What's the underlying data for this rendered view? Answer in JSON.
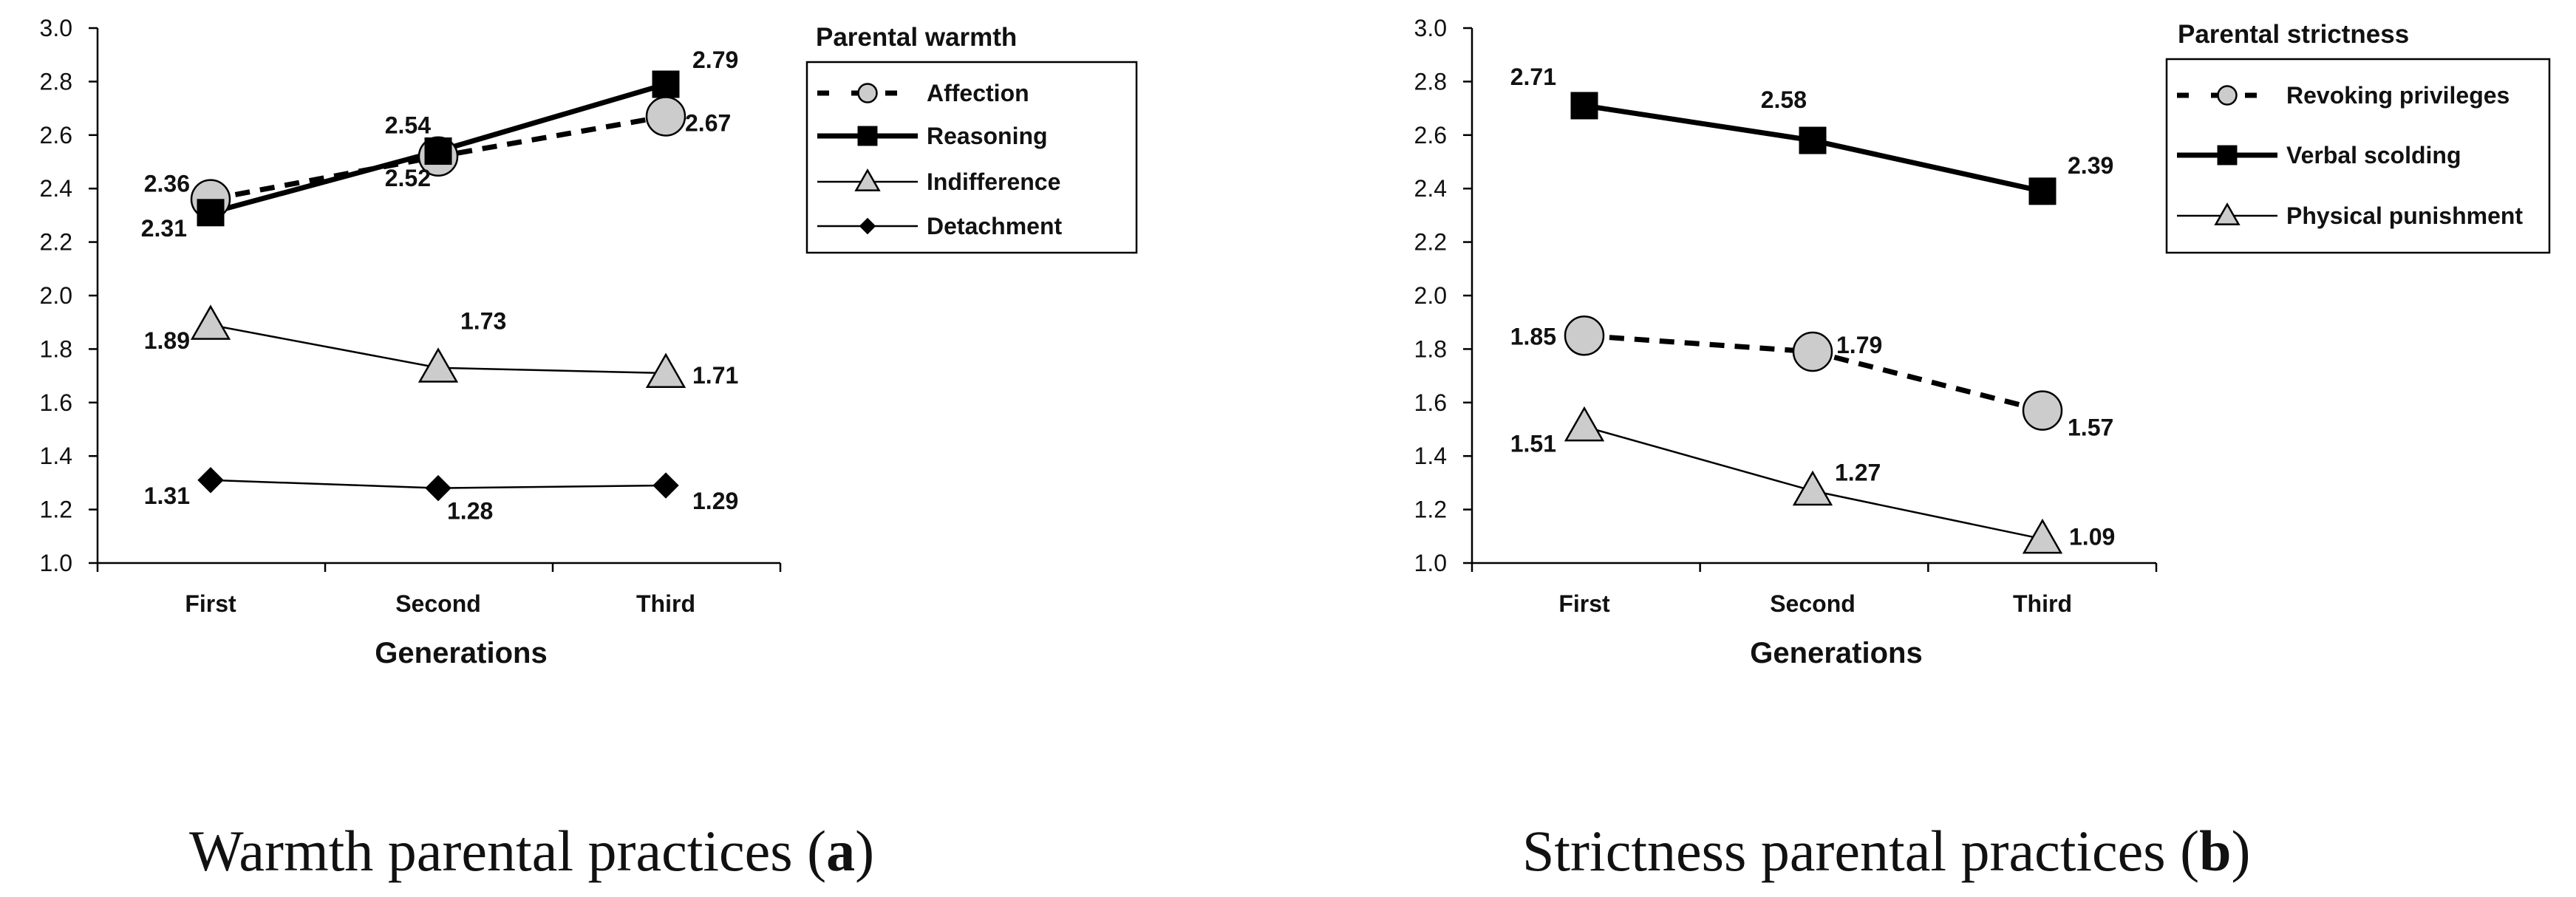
{
  "chart_data": [
    {
      "type": "line",
      "categories": [
        "First",
        "Second",
        "Third"
      ],
      "xlabel": "Generations",
      "ylabel": "",
      "ylim": [
        1.0,
        3.0
      ],
      "yticks": [
        "1.0",
        "1.2",
        "1.4",
        "1.6",
        "1.8",
        "2.0",
        "2.2",
        "2.4",
        "2.6",
        "2.8",
        "3.0"
      ],
      "legend_title": "Parental warmth",
      "caption": {
        "text": "Warmth parental practices (",
        "letter": "a",
        "close": ")"
      },
      "series": [
        {
          "name": "Affection",
          "values": [
            2.36,
            2.52,
            2.67
          ],
          "labels": [
            "2.36",
            "2.52",
            "2.67"
          ],
          "style": "dashed",
          "marker": "circle"
        },
        {
          "name": "Reasoning",
          "values": [
            2.31,
            2.54,
            2.79
          ],
          "labels": [
            "2.31",
            "2.54",
            "2.79"
          ],
          "style": "thick",
          "marker": "square"
        },
        {
          "name": "Indifference",
          "values": [
            1.89,
            1.73,
            1.71
          ],
          "labels": [
            "1.89",
            "1.73",
            "1.71"
          ],
          "style": "thin",
          "marker": "triangle"
        },
        {
          "name": "Detachment",
          "values": [
            1.31,
            1.28,
            1.29
          ],
          "labels": [
            "1.31",
            "1.28",
            "1.29"
          ],
          "style": "thin",
          "marker": "diamond"
        }
      ]
    },
    {
      "type": "line",
      "categories": [
        "First",
        "Second",
        "Third"
      ],
      "xlabel": "Generations",
      "ylabel": "",
      "ylim": [
        1.0,
        3.0
      ],
      "yticks": [
        "1.0",
        "1.2",
        "1.4",
        "1.6",
        "1.8",
        "2.0",
        "2.2",
        "2.4",
        "2.6",
        "2.8",
        "3.0"
      ],
      "legend_title": "Parental strictness",
      "caption": {
        "text": "Strictness parental practices (",
        "letter": "b",
        "close": ")"
      },
      "series": [
        {
          "name": "Revoking privileges",
          "values": [
            1.85,
            1.79,
            1.57
          ],
          "labels": [
            "1.85",
            "1.79",
            "1.57"
          ],
          "style": "dashed",
          "marker": "circle"
        },
        {
          "name": "Verbal scolding",
          "values": [
            2.71,
            2.58,
            2.39
          ],
          "labels": [
            "2.71",
            "2.58",
            "2.39"
          ],
          "style": "thick",
          "marker": "square"
        },
        {
          "name": "Physical punishment",
          "values": [
            1.51,
            1.27,
            1.09
          ],
          "labels": [
            "1.51",
            "1.27",
            "1.09"
          ],
          "style": "thin",
          "marker": "triangle"
        }
      ]
    }
  ],
  "colors": {
    "ink": "#000000",
    "marker_fill": "#cccccc",
    "text": "#111111"
  }
}
